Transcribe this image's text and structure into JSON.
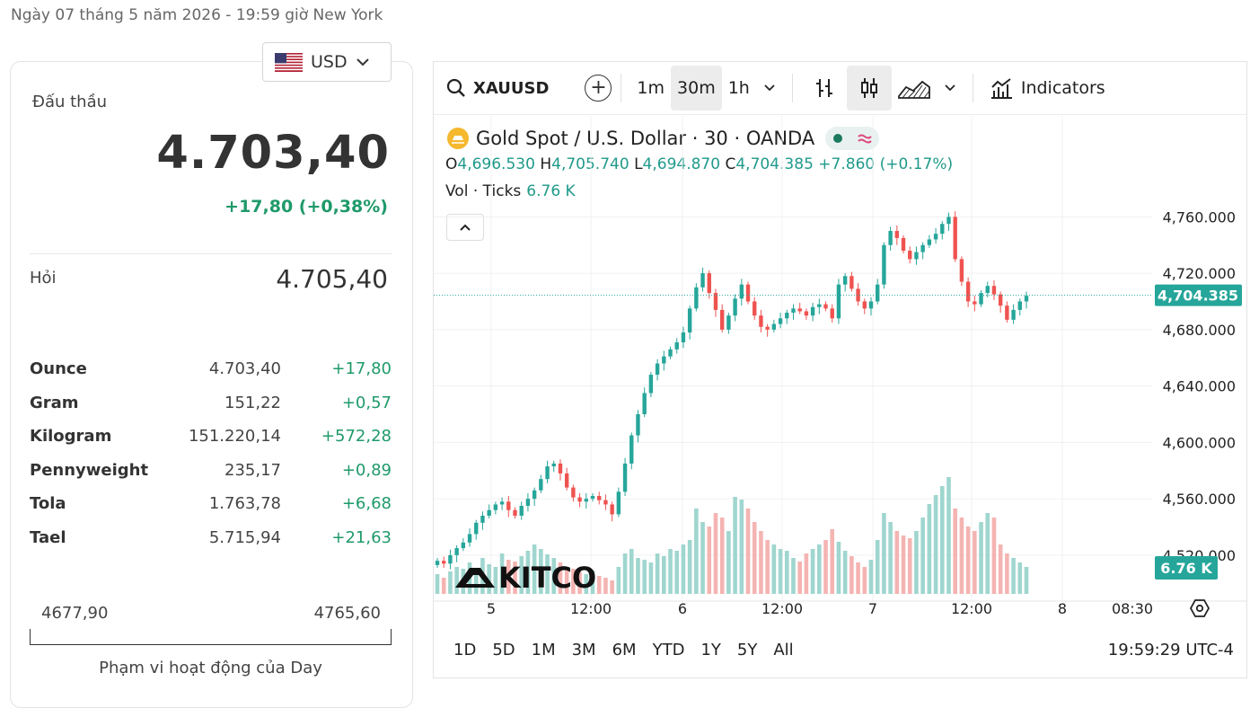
{
  "header": {
    "date_text": "Ngày 07 tháng 5 năm 2026 - 19:59 giờ New York"
  },
  "currency": {
    "selected": "USD",
    "flag_icon": "us-flag-icon"
  },
  "quote": {
    "bid_label": "Đấu thầu",
    "bid_value": "4.703,40",
    "bid_change": "+17,80 (+0,38%)",
    "ask_label": "Hỏi",
    "ask_value": "4.705,40",
    "positive_color": "#1f9a6a"
  },
  "units": [
    {
      "name": "Ounce",
      "price": "4.703,40",
      "change": "+17,80"
    },
    {
      "name": "Gram",
      "price": "151,22",
      "change": "+0,57"
    },
    {
      "name": "Kilogram",
      "price": "151.220,14",
      "change": "+572,28"
    },
    {
      "name": "Pennyweight",
      "price": "235,17",
      "change": "+0,89"
    },
    {
      "name": "Tola",
      "price": "1.763,78",
      "change": "+6,68"
    },
    {
      "name": "Tael",
      "price": "5.715,94",
      "change": "+21,63"
    }
  ],
  "day_range": {
    "low": "4677,90",
    "high": "4765,60",
    "caption": "Phạm vi hoạt động của Day"
  },
  "toolbar": {
    "symbol": "XAUUSD",
    "intervals": [
      "1m",
      "30m",
      "1h"
    ],
    "active_interval": "30m",
    "indicators_label": "Indicators"
  },
  "legend": {
    "title": "Gold Spot / U.S. Dollar · 30 · OANDA",
    "o_label": "O",
    "o_value": "4,696.530",
    "h_label": "H",
    "h_value": "4,705.740",
    "l_label": "L",
    "l_value": "4,694.870",
    "c_label": "C",
    "c_value": "4,704.385",
    "change": "+7.860 (+0.17%)",
    "vol_label": "Vol · Ticks",
    "vol_value": "6.76 K"
  },
  "chart_data": {
    "type": "candlestick",
    "y_ticks": [
      "4,760.000",
      "4,720.000",
      "4,680.000",
      "4,640.000",
      "4,600.000",
      "4,560.000",
      "4,520.000"
    ],
    "y_tick_values": [
      4760,
      4720,
      4680,
      4640,
      4600,
      4560,
      4520
    ],
    "ylim": [
      4497,
      4787
    ],
    "x_ticks": [
      "5",
      "12:00",
      "6",
      "12:00",
      "7",
      "12:00",
      "8",
      "08:30"
    ],
    "last_price_label": "4,704.385",
    "last_price": 4704.385,
    "volume_label": "6.76 K",
    "watermark": "KITCO",
    "up_color": "#26a69a",
    "down_color": "#ef5350",
    "price_path": [
      4516,
      4514,
      4520,
      4525,
      4529,
      4535,
      4543,
      4548,
      4552,
      4556,
      4558,
      4552,
      4548,
      4555,
      4560,
      4566,
      4574,
      4583,
      4585,
      4578,
      4568,
      4561,
      4558,
      4560,
      4562,
      4559,
      4556,
      4549,
      4565,
      4585,
      4605,
      4620,
      4635,
      4648,
      4656,
      4661,
      4666,
      4671,
      4678,
      4695,
      4710,
      4720,
      4706,
      4694,
      4680,
      4690,
      4702,
      4712,
      4700,
      4690,
      4682,
      4680,
      4684,
      4688,
      4692,
      4695,
      4693,
      4690,
      4696,
      4698,
      4695,
      4688,
      4712,
      4718,
      4709,
      4700,
      4695,
      4700,
      4712,
      4740,
      4750,
      4745,
      4736,
      4730,
      4735,
      4740,
      4744,
      4748,
      4755,
      4760,
      4730,
      4714,
      4700,
      4698,
      4706,
      4711,
      4705,
      4697,
      4687,
      4694,
      4700,
      4704
    ],
    "volumes": [
      22,
      18,
      25,
      30,
      28,
      35,
      26,
      40,
      33,
      30,
      45,
      38,
      36,
      42,
      48,
      55,
      50,
      44,
      40,
      35,
      30,
      28,
      24,
      22,
      26,
      20,
      18,
      15,
      30,
      45,
      50,
      40,
      38,
      35,
      45,
      42,
      50,
      48,
      55,
      60,
      95,
      80,
      75,
      90,
      85,
      70,
      108,
      105,
      95,
      80,
      70,
      60,
      55,
      50,
      48,
      40,
      36,
      45,
      50,
      55,
      60,
      72,
      58,
      48,
      42,
      35,
      30,
      38,
      60,
      90,
      80,
      70,
      65,
      62,
      70,
      85,
      100,
      110,
      120,
      130,
      95,
      85,
      75,
      70,
      80,
      90,
      85,
      55,
      45,
      40,
      35,
      30
    ]
  }
}
